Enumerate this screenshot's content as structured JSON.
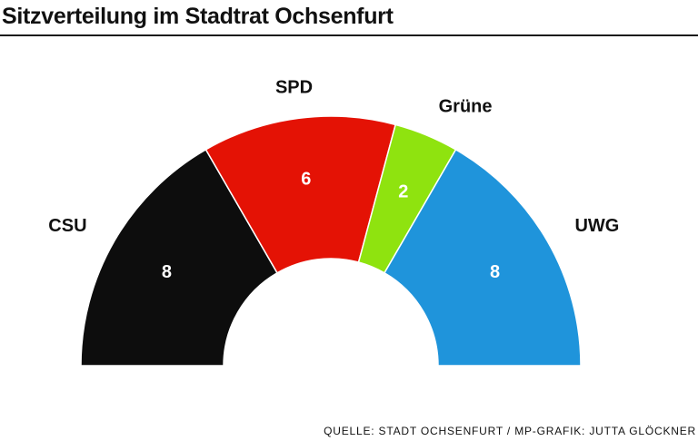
{
  "title": "Sitzverteilung im Stadtrat Ochsenfurt",
  "source": "QUELLE: STADT OCHSENFURT / MP-GRAFIK: JUTTA GLÖCKNER",
  "chart_data": {
    "type": "pie",
    "variant": "parliament-semicircle",
    "title": "Sitzverteilung im Stadtrat Ochsenfurt",
    "categories": [
      "CSU",
      "SPD",
      "Grüne",
      "UWG"
    ],
    "values": [
      8,
      6,
      2,
      8
    ],
    "colors": [
      "#0d0d0d",
      "#e41205",
      "#8fe30f",
      "#1f94db"
    ],
    "value_label_color": "#ffffff",
    "legend": "none"
  }
}
